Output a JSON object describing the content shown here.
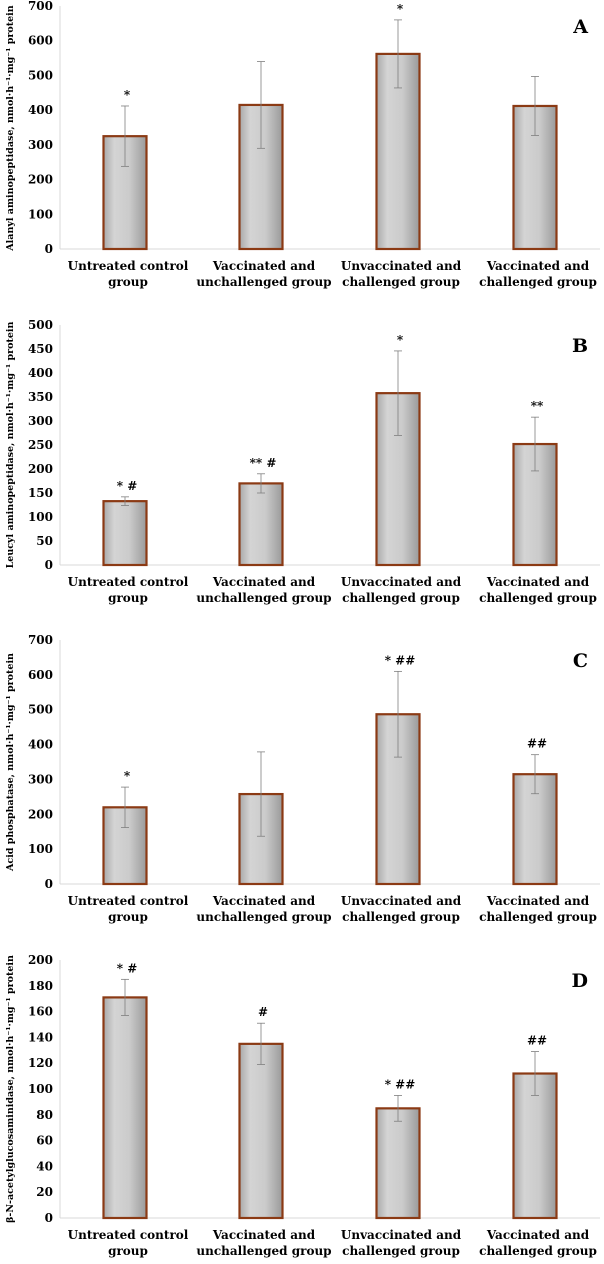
{
  "colors": {
    "bar_fill": "#c8c8c8",
    "bar_edge": "#8b3a14",
    "axis": "#d9d9d9",
    "error": "#7f7f7f"
  },
  "chart_data": [
    {
      "type": "bar",
      "panel_label": "A",
      "ylabel": "Alanyl aminopeptidase, nmol·h⁻¹·mg⁻¹ protein",
      "ylim": [
        0,
        700
      ],
      "yticks": [
        0,
        100,
        200,
        300,
        400,
        500,
        600,
        700
      ],
      "categories": [
        [
          "Untreated control",
          "group"
        ],
        [
          "Vaccinated and",
          "unchallenged group"
        ],
        [
          "Unvaccinated and",
          "challenged group"
        ],
        [
          "Vaccinated and",
          "challenged group"
        ]
      ],
      "values": [
        325,
        415,
        562,
        412
      ],
      "errors": [
        87,
        125,
        98,
        85
      ],
      "annotations": [
        "*",
        "",
        "*",
        ""
      ]
    },
    {
      "type": "bar",
      "panel_label": "B",
      "ylabel": "Leucyl aminopeptidase, nmol·h⁻¹·mg⁻¹ protein",
      "ylim": [
        0,
        500
      ],
      "yticks": [
        0,
        50,
        100,
        150,
        200,
        250,
        300,
        350,
        400,
        450,
        500
      ],
      "categories": [
        [
          "Untreated control",
          "group"
        ],
        [
          "Vaccinated and",
          "unchallenged group"
        ],
        [
          "Unvaccinated and",
          "challenged group"
        ],
        [
          "Vaccinated and",
          "challenged group"
        ]
      ],
      "values": [
        133,
        170,
        358,
        252
      ],
      "errors": [
        9,
        20,
        88,
        56
      ],
      "annotations": [
        "* #",
        "** #",
        "*",
        "**"
      ]
    },
    {
      "type": "bar",
      "panel_label": "C",
      "ylabel": "Acid phosphatase, nmol·h⁻¹·mg⁻¹ protein",
      "ylim": [
        0,
        700
      ],
      "yticks": [
        0,
        100,
        200,
        300,
        400,
        500,
        600,
        700
      ],
      "categories": [
        [
          "Untreated control",
          "group"
        ],
        [
          "Vaccinated and",
          "unchallenged group"
        ],
        [
          "Unvaccinated and",
          "challenged group"
        ],
        [
          "Vaccinated and",
          "challenged group"
        ]
      ],
      "values": [
        220,
        258,
        487,
        315
      ],
      "errors": [
        58,
        121,
        123,
        56
      ],
      "annotations": [
        "*",
        "",
        "* ##",
        "##"
      ]
    },
    {
      "type": "bar",
      "panel_label": "D",
      "ylabel": "β-N-acetylglucosaminidase, nmol·h⁻¹·mg⁻¹ protein",
      "ylim": [
        0,
        200
      ],
      "yticks": [
        0,
        20,
        40,
        60,
        80,
        100,
        120,
        140,
        160,
        180,
        200
      ],
      "categories": [
        [
          "Untreated control",
          "group"
        ],
        [
          "Vaccinated and",
          "unchallenged group"
        ],
        [
          "Unvaccinated and",
          "challenged group"
        ],
        [
          "Vaccinated and",
          "challenged group"
        ]
      ],
      "values": [
        171,
        135,
        85,
        112
      ],
      "errors": [
        14,
        16,
        10,
        17
      ],
      "annotations": [
        "* #",
        "#",
        "* ##",
        "##"
      ]
    }
  ]
}
